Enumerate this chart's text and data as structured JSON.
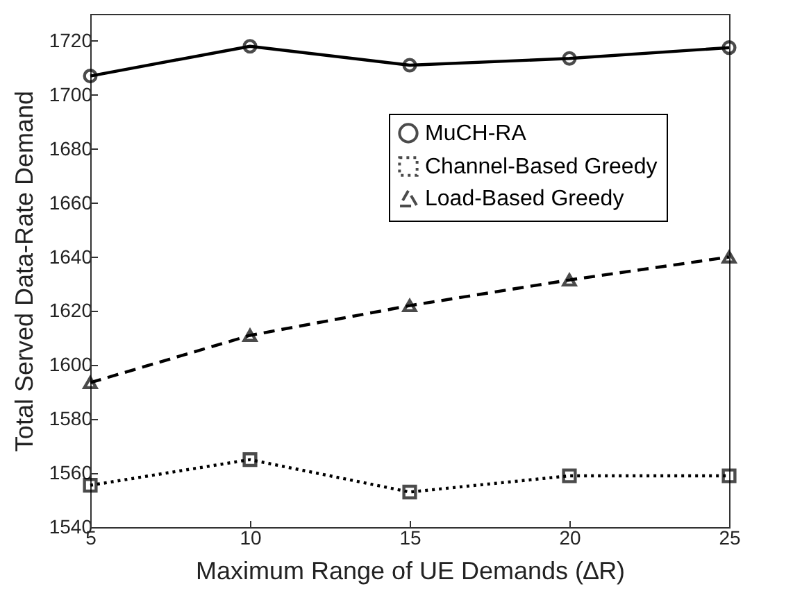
{
  "chart_data": {
    "type": "line",
    "xlabel": "Maximum Range of UE Demands (∆R)",
    "ylabel": "Total Served Data-Rate Demand",
    "x": [
      5,
      10,
      15,
      20,
      25
    ],
    "series": [
      {
        "name": "MuCH-RA",
        "color": "#000000",
        "marker": "circle",
        "line_style": "solid",
        "values": [
          1707,
          1718,
          1711,
          1713.5,
          1717.5
        ]
      },
      {
        "name": "Channel-Based Greedy",
        "color": "#000000",
        "marker": "square",
        "line_style": "dotted",
        "values": [
          1555.5,
          1565,
          1553,
          1559,
          1559
        ]
      },
      {
        "name": "Load-Based Greedy",
        "color": "#000000",
        "marker": "triangle",
        "line_style": "dashed",
        "values": [
          1593.5,
          1611,
          1622,
          1631.5,
          1640
        ]
      }
    ],
    "xlim": [
      5,
      25
    ],
    "xticks": [
      5,
      10,
      15,
      20,
      25
    ],
    "ylim": [
      1540,
      1730
    ],
    "yticks": [
      1540,
      1560,
      1580,
      1600,
      1620,
      1640,
      1660,
      1680,
      1700,
      1720
    ],
    "grid": false,
    "legend": "top right"
  }
}
